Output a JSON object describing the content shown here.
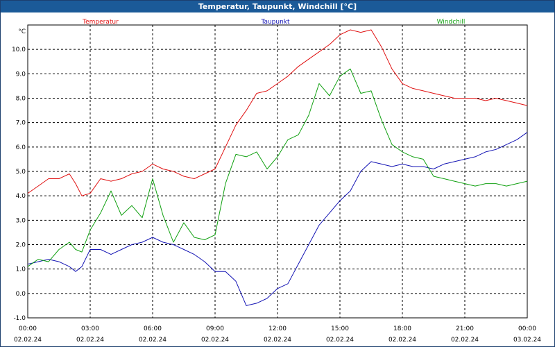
{
  "window": {
    "title": "Temperatur, Taupunkt, Windchill [°C]"
  },
  "chart_data": {
    "type": "line",
    "title": "Temperatur, Taupunkt, Windchill [°C]",
    "ylabel": "°C",
    "ylim": [
      -1.0,
      11.0
    ],
    "yticks": [
      "-1.0",
      "0.0",
      "1.0",
      "2.0",
      "3.0",
      "4.0",
      "5.0",
      "6.0",
      "7.0",
      "8.0",
      "9.0",
      "10.0"
    ],
    "xlim": [
      0,
      24
    ],
    "xticks": [
      {
        "time": "00:00",
        "date": "02.02.24"
      },
      {
        "time": "03:00",
        "date": "02.02.24"
      },
      {
        "time": "06:00",
        "date": "02.02.24"
      },
      {
        "time": "09:00",
        "date": "02.02.24"
      },
      {
        "time": "12:00",
        "date": "02.02.24"
      },
      {
        "time": "15:00",
        "date": "02.02.24"
      },
      {
        "time": "18:00",
        "date": "02.02.24"
      },
      {
        "time": "21:00",
        "date": "02.02.24"
      },
      {
        "time": "00:00",
        "date": "03.02.24"
      }
    ],
    "grid": true,
    "series": [
      {
        "name": "Temperatur",
        "color": "#e01010",
        "x": [
          0,
          0.5,
          1,
          1.5,
          2,
          2.3,
          2.6,
          3,
          3.5,
          4,
          4.5,
          5,
          5.5,
          6,
          6.5,
          7,
          7.5,
          8,
          8.5,
          9,
          9.5,
          10,
          10.5,
          11,
          11.5,
          12,
          12.5,
          13,
          13.5,
          14,
          14.5,
          15,
          15.5,
          16,
          16.5,
          17,
          17.5,
          18,
          18.5,
          19,
          19.5,
          20,
          20.5,
          21,
          21.5,
          22,
          22.5,
          23,
          23.5,
          24
        ],
        "values": [
          4.1,
          4.4,
          4.7,
          4.7,
          4.9,
          4.5,
          4.0,
          4.1,
          4.7,
          4.6,
          4.7,
          4.9,
          5.0,
          5.3,
          5.1,
          5.0,
          4.8,
          4.7,
          4.9,
          5.1,
          6.0,
          6.9,
          7.5,
          8.2,
          8.3,
          8.6,
          8.9,
          9.3,
          9.6,
          9.9,
          10.2,
          10.6,
          10.8,
          10.7,
          10.8,
          10.1,
          9.2,
          8.6,
          8.4,
          8.3,
          8.2,
          8.1,
          8.0,
          8.0,
          8.0,
          7.9,
          8.0,
          7.9,
          7.8,
          7.7
        ]
      },
      {
        "name": "Taupunkt",
        "color": "#1414b4",
        "x": [
          0,
          0.5,
          1,
          1.5,
          2,
          2.3,
          2.6,
          3,
          3.5,
          4,
          4.5,
          5,
          5.5,
          6,
          6.5,
          7,
          7.5,
          8,
          8.5,
          9,
          9.5,
          10,
          10.5,
          11,
          11.5,
          12,
          12.5,
          13,
          13.5,
          14,
          14.5,
          15,
          15.5,
          16,
          16.5,
          17,
          17.5,
          18,
          18.5,
          19,
          19.5,
          20,
          20.5,
          21,
          21.5,
          22,
          22.5,
          23,
          23.5,
          24
        ],
        "values": [
          1.2,
          1.3,
          1.4,
          1.3,
          1.1,
          0.9,
          1.1,
          1.8,
          1.8,
          1.6,
          1.8,
          2.0,
          2.1,
          2.3,
          2.1,
          2.0,
          1.8,
          1.6,
          1.3,
          0.9,
          0.9,
          0.5,
          -0.5,
          -0.4,
          -0.2,
          0.2,
          0.4,
          1.2,
          2.0,
          2.8,
          3.3,
          3.8,
          4.2,
          5.0,
          5.4,
          5.3,
          5.2,
          5.3,
          5.2,
          5.2,
          5.1,
          5.3,
          5.4,
          5.5,
          5.6,
          5.8,
          5.9,
          6.1,
          6.3,
          6.6
        ]
      },
      {
        "name": "Windchill",
        "color": "#10a010",
        "x": [
          0,
          0.5,
          1,
          1.5,
          2,
          2.3,
          2.6,
          3,
          3.5,
          4,
          4.5,
          5,
          5.5,
          6,
          6.5,
          7,
          7.5,
          8,
          8.5,
          9,
          9.5,
          10,
          10.5,
          11,
          11.5,
          12,
          12.5,
          13,
          13.5,
          14,
          14.5,
          15,
          15.5,
          16,
          16.5,
          17,
          17.5,
          18,
          18.5,
          19,
          19.5,
          20,
          20.5,
          21,
          21.5,
          22,
          22.5,
          23,
          23.5,
          24
        ],
        "values": [
          1.1,
          1.4,
          1.3,
          1.8,
          2.1,
          1.8,
          1.7,
          2.6,
          3.3,
          4.2,
          3.2,
          3.6,
          3.1,
          4.7,
          3.2,
          2.1,
          2.9,
          2.3,
          2.2,
          2.4,
          4.5,
          5.7,
          5.6,
          5.8,
          5.1,
          5.6,
          6.3,
          6.5,
          7.3,
          8.6,
          8.1,
          8.9,
          9.2,
          8.2,
          8.3,
          7.1,
          6.1,
          5.8,
          5.6,
          5.5,
          4.8,
          4.7,
          4.6,
          4.5,
          4.4,
          4.5,
          4.5,
          4.4,
          4.5,
          4.6
        ]
      }
    ]
  }
}
